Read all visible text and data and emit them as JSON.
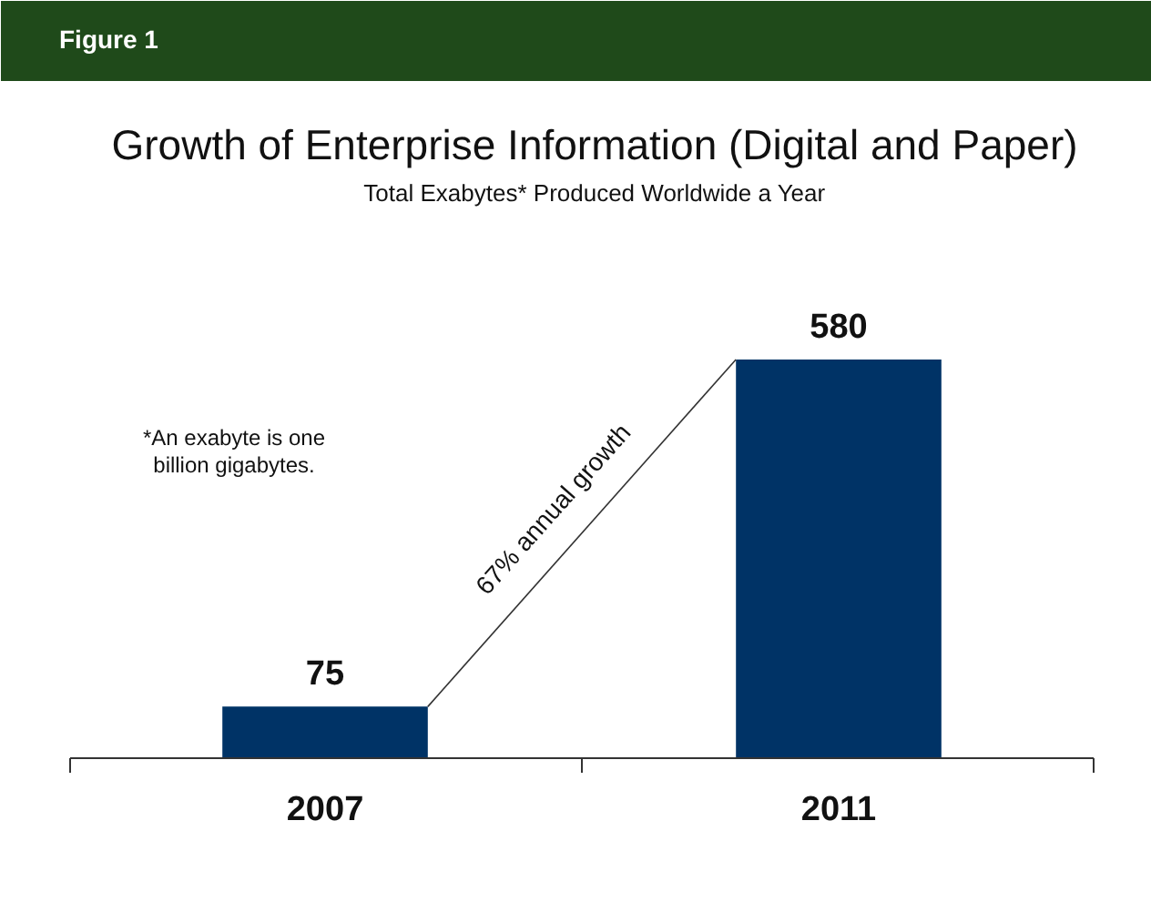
{
  "chart_data": {
    "type": "bar",
    "title": "Growth of Enterprise Information (Digital and Paper)",
    "subtitle": "Total Exabytes* Produced Worldwide a Year",
    "categories": [
      "2007",
      "2011"
    ],
    "values": [
      75,
      580
    ],
    "color": "#003366",
    "data_labels": true,
    "annotations": [
      "Figure 1",
      "*An exabyte is one\nbillion gigabytes.",
      "67% annual growth"
    ]
  }
}
